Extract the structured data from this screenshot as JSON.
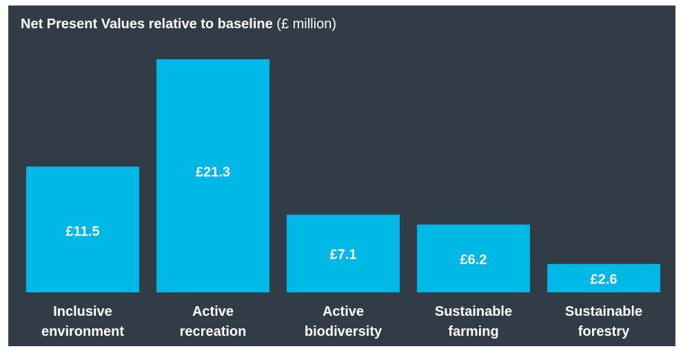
{
  "chart_data": {
    "type": "bar",
    "title": "Net Present Values relative to baseline",
    "title_unit": "(£ million)",
    "categories": [
      [
        "Inclusive",
        "environment"
      ],
      [
        "Active",
        "recreation"
      ],
      [
        "Active",
        "biodiversity"
      ],
      [
        "Sustainable",
        "farming"
      ],
      [
        "Sustainable",
        "forestry"
      ]
    ],
    "values": [
      11.5,
      21.3,
      7.1,
      6.2,
      2.6
    ],
    "value_labels": [
      "£11.5",
      "£21.3",
      "£7.1",
      "£6.2",
      "£2.6"
    ],
    "ylim": [
      0,
      21.3
    ],
    "grid": false,
    "xlabel": "",
    "ylabel": ""
  },
  "colors": {
    "background": "#313c47",
    "bar": "#00b8e6",
    "text": "#ffffff"
  }
}
